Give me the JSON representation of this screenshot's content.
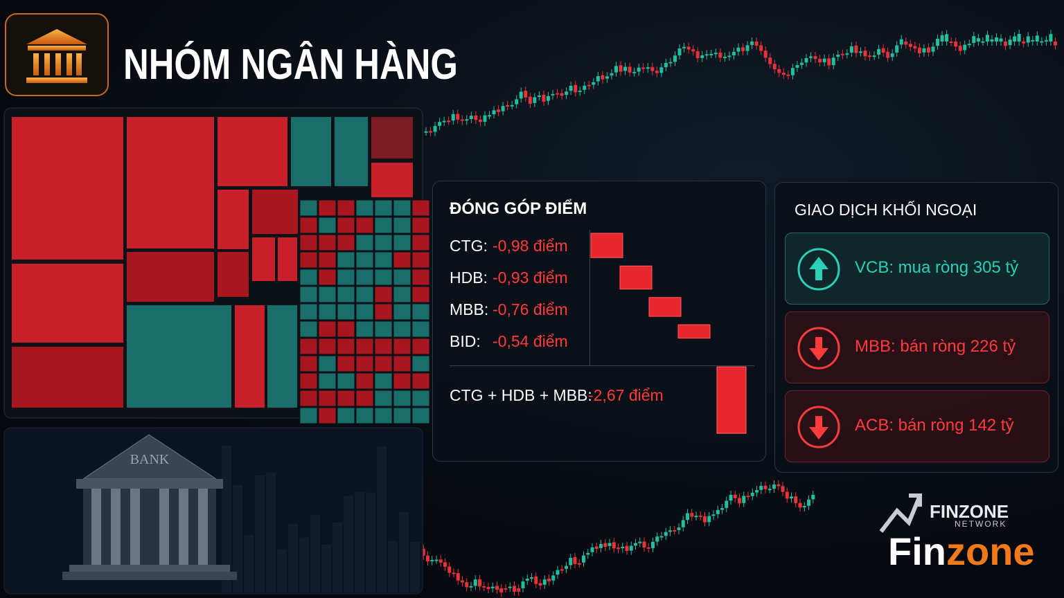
{
  "header": {
    "title": "NHÓM NGÂN HÀNG"
  },
  "contribution": {
    "title": "ĐÓNG GÓP ĐIỂM",
    "items": [
      {
        "ticker": "CTG:",
        "value": -0.98,
        "label": "-0,98 điểm"
      },
      {
        "ticker": "HDB:",
        "value": -0.93,
        "label": "-0,93 điểm"
      },
      {
        "ticker": "MBB:",
        "value": -0.76,
        "label": "-0,76 điểm"
      },
      {
        "ticker": "BID:",
        "value": -0.54,
        "label": "-0,54 điểm"
      }
    ],
    "total": {
      "label": "CTG + HDB + MBB:",
      "value": -2.67,
      "value_label": "-2,67 điểm"
    }
  },
  "foreign": {
    "title": "GIAO DỊCH KHỐI NGOẠI",
    "items": [
      {
        "text": "VCB: mua ròng 305 tỷ",
        "direction": "up"
      },
      {
        "text": "MBB: bán ròng 226 tỷ",
        "direction": "down"
      },
      {
        "text": "ACB: bán ròng 142 tỷ",
        "direction": "down"
      }
    ]
  },
  "building": {
    "sign": "BANK"
  },
  "logo": {
    "brand": "FINZONE",
    "tagline": "NETWORK",
    "wordmark": [
      "Fin",
      "zone"
    ]
  }
}
